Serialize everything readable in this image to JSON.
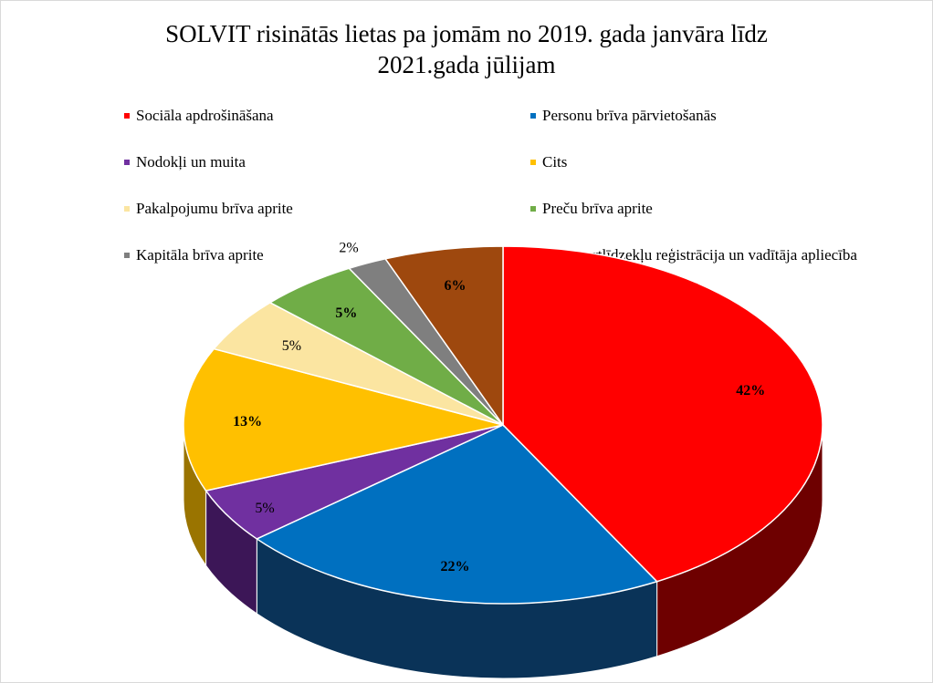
{
  "chart_data": {
    "type": "pie",
    "title_lines": [
      "SOLVIT risinātās lietas pa jomām no 2019. gada janvāra līdz",
      "2021.gada jūlijam"
    ],
    "legend_placement": "top",
    "slices": [
      {
        "label": "Sociāla apdrošināšana",
        "value": 42,
        "value_label": "42%",
        "color": "#ff0000",
        "side_color": "#6e0000",
        "label_bold": true
      },
      {
        "label": "Personu brīva pārvietošanās",
        "value": 22,
        "value_label": "22%",
        "color": "#0070c0",
        "side_color": "#0a3358",
        "label_bold": true
      },
      {
        "label": "Nodokļi un muita",
        "value": 5,
        "value_label": "5%",
        "color": "#7030a0",
        "side_color": "#3c1657",
        "label_bold": false
      },
      {
        "label": "Cits",
        "value": 13,
        "value_label": "13%",
        "color": "#ffc000",
        "side_color": "#9a7400",
        "label_bold": true
      },
      {
        "label": "Pakalpojumu brīva aprite",
        "value": 5,
        "value_label": "5%",
        "color": "#fbe5a1",
        "side_color": "#b8a66a",
        "label_bold": false
      },
      {
        "label": "Preču brīva aprite",
        "value": 5,
        "value_label": "5%",
        "color": "#70ad47",
        "side_color": "#3c6226",
        "label_bold": true
      },
      {
        "label": "Kapitāla brīva aprite",
        "value": 2,
        "value_label": "2%",
        "color": "#7f7f7f",
        "side_color": "#454545",
        "label_bold": false
      },
      {
        "label": "Transportlīdzekļu reģistrācija un vadītāja apliecība",
        "value": 6,
        "value_label": "6%",
        "color": "#9e480e",
        "side_color": "#55260a",
        "label_bold": true
      }
    ]
  }
}
